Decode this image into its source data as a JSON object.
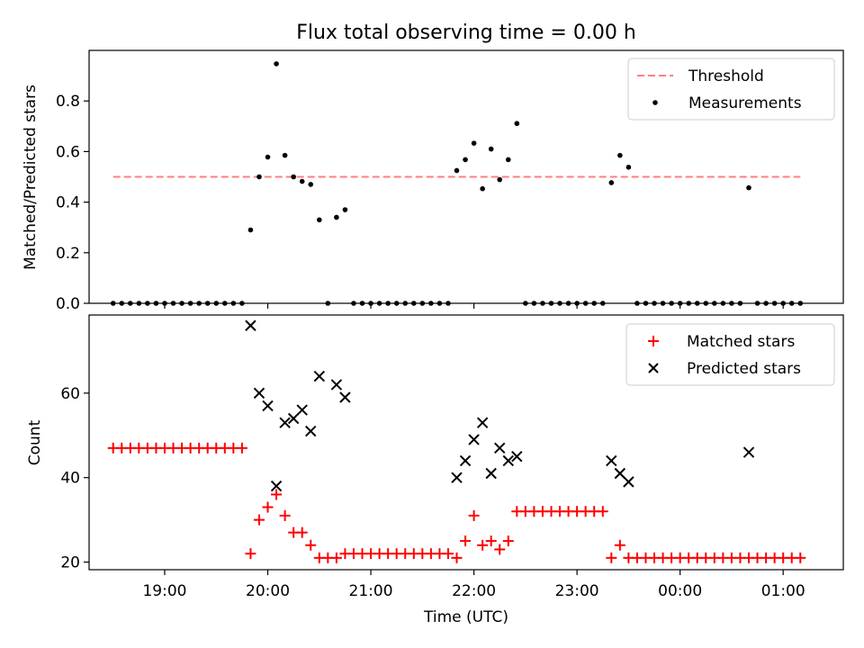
{
  "chart_data": [
    {
      "type": "scatter",
      "title": "Flux total observing time = 0.00 h",
      "ylabel": "Matched/Predicted stars",
      "xlabel": "",
      "ylim": [
        0,
        1.0
      ],
      "yticks": [
        0.0,
        0.2,
        0.4,
        0.6,
        0.8
      ],
      "ytick_labels": [
        "0.0",
        "0.2",
        "0.4",
        "0.6",
        "0.8"
      ],
      "x_is_time": true,
      "xlim": [
        "18:16",
        "25:35"
      ],
      "grid": false,
      "legend_position": "upper right",
      "series": [
        {
          "name": "Threshold",
          "kind": "dashed-line",
          "color": "#ff7f7f",
          "x": [
            "18:30",
            "25:10"
          ],
          "y": [
            0.5,
            0.5
          ]
        },
        {
          "name": "Measurements",
          "kind": "dot",
          "color": "#000000",
          "points": [
            [
              "18:30",
              0
            ],
            [
              "18:35",
              0
            ],
            [
              "18:40",
              0
            ],
            [
              "18:45",
              0
            ],
            [
              "18:50",
              0
            ],
            [
              "18:55",
              0
            ],
            [
              "19:00",
              0
            ],
            [
              "19:05",
              0
            ],
            [
              "19:10",
              0
            ],
            [
              "19:15",
              0
            ],
            [
              "19:20",
              0
            ],
            [
              "19:25",
              0
            ],
            [
              "19:30",
              0
            ],
            [
              "19:35",
              0
            ],
            [
              "19:40",
              0
            ],
            [
              "19:45",
              0
            ],
            [
              "19:50",
              0.29
            ],
            [
              "19:55",
              0.5
            ],
            [
              "20:00",
              0.578
            ],
            [
              "20:05",
              0.947
            ],
            [
              "20:10",
              0.585
            ],
            [
              "20:15",
              0.5
            ],
            [
              "20:20",
              0.482
            ],
            [
              "20:25",
              0.47
            ],
            [
              "20:30",
              0.33
            ],
            [
              "20:35",
              0
            ],
            [
              "20:40",
              0.34
            ],
            [
              "20:45",
              0.37
            ],
            [
              "20:50",
              0
            ],
            [
              "20:55",
              0
            ],
            [
              "21:00",
              0
            ],
            [
              "21:05",
              0
            ],
            [
              "21:10",
              0
            ],
            [
              "21:15",
              0
            ],
            [
              "21:20",
              0
            ],
            [
              "21:25",
              0
            ],
            [
              "21:30",
              0
            ],
            [
              "21:35",
              0
            ],
            [
              "21:40",
              0
            ],
            [
              "21:45",
              0
            ],
            [
              "21:50",
              0.525
            ],
            [
              "21:55",
              0.568
            ],
            [
              "22:00",
              0.633
            ],
            [
              "22:05",
              0.453
            ],
            [
              "22:10",
              0.61
            ],
            [
              "22:15",
              0.489
            ],
            [
              "22:20",
              0.568
            ],
            [
              "22:25",
              0.711
            ],
            [
              "22:30",
              0
            ],
            [
              "22:35",
              0
            ],
            [
              "22:40",
              0
            ],
            [
              "22:45",
              0
            ],
            [
              "22:50",
              0
            ],
            [
              "22:55",
              0
            ],
            [
              "23:00",
              0
            ],
            [
              "23:05",
              0
            ],
            [
              "23:10",
              0
            ],
            [
              "23:15",
              0
            ],
            [
              "23:20",
              0.477
            ],
            [
              "23:25",
              0.585
            ],
            [
              "23:30",
              0.538
            ],
            [
              "23:35",
              0
            ],
            [
              "23:40",
              0
            ],
            [
              "23:45",
              0
            ],
            [
              "23:50",
              0
            ],
            [
              "23:55",
              0
            ],
            [
              "24:00",
              0
            ],
            [
              "24:05",
              0
            ],
            [
              "24:10",
              0
            ],
            [
              "24:15",
              0
            ],
            [
              "24:20",
              0
            ],
            [
              "24:25",
              0
            ],
            [
              "24:30",
              0
            ],
            [
              "24:35",
              0
            ],
            [
              "24:40",
              0.457
            ],
            [
              "24:45",
              0
            ],
            [
              "24:50",
              0
            ],
            [
              "24:55",
              0
            ],
            [
              "25:00",
              0
            ],
            [
              "25:05",
              0
            ],
            [
              "25:10",
              0
            ]
          ]
        }
      ]
    },
    {
      "type": "scatter",
      "title": "",
      "ylabel": "Count",
      "xlabel": "Time (UTC)",
      "ylim": [
        18.2,
        78.5
      ],
      "yticks": [
        20,
        40,
        60
      ],
      "ytick_labels": [
        "20",
        "40",
        "60"
      ],
      "x_is_time": true,
      "xlim": [
        "18:16",
        "25:35"
      ],
      "xticks": [
        "19:00",
        "20:00",
        "21:00",
        "22:00",
        "23:00",
        "24:00",
        "25:00"
      ],
      "xtick_labels": [
        "19:00",
        "20:00",
        "21:00",
        "22:00",
        "23:00",
        "00:00",
        "01:00"
      ],
      "grid": false,
      "legend_position": "upper right",
      "series": [
        {
          "name": "Matched stars",
          "kind": "plus",
          "color": "#ff0000",
          "points": [
            [
              "18:30",
              47
            ],
            [
              "18:35",
              47
            ],
            [
              "18:40",
              47
            ],
            [
              "18:45",
              47
            ],
            [
              "18:50",
              47
            ],
            [
              "18:55",
              47
            ],
            [
              "19:00",
              47
            ],
            [
              "19:05",
              47
            ],
            [
              "19:10",
              47
            ],
            [
              "19:15",
              47
            ],
            [
              "19:20",
              47
            ],
            [
              "19:25",
              47
            ],
            [
              "19:30",
              47
            ],
            [
              "19:35",
              47
            ],
            [
              "19:40",
              47
            ],
            [
              "19:45",
              47
            ],
            [
              "19:50",
              22
            ],
            [
              "19:55",
              30
            ],
            [
              "20:00",
              33
            ],
            [
              "20:05",
              36
            ],
            [
              "20:10",
              31
            ],
            [
              "20:15",
              27
            ],
            [
              "20:20",
              27
            ],
            [
              "20:25",
              24
            ],
            [
              "20:30",
              21
            ],
            [
              "20:35",
              21
            ],
            [
              "20:40",
              21
            ],
            [
              "20:45",
              22
            ],
            [
              "20:50",
              22
            ],
            [
              "20:55",
              22
            ],
            [
              "21:00",
              22
            ],
            [
              "21:05",
              22
            ],
            [
              "21:10",
              22
            ],
            [
              "21:15",
              22
            ],
            [
              "21:20",
              22
            ],
            [
              "21:25",
              22
            ],
            [
              "21:30",
              22
            ],
            [
              "21:35",
              22
            ],
            [
              "21:40",
              22
            ],
            [
              "21:45",
              22
            ],
            [
              "21:50",
              21
            ],
            [
              "21:55",
              25
            ],
            [
              "22:00",
              31
            ],
            [
              "22:05",
              24
            ],
            [
              "22:10",
              25
            ],
            [
              "22:15",
              23
            ],
            [
              "22:20",
              25
            ],
            [
              "22:25",
              32
            ],
            [
              "22:30",
              32
            ],
            [
              "22:35",
              32
            ],
            [
              "22:40",
              32
            ],
            [
              "22:45",
              32
            ],
            [
              "22:50",
              32
            ],
            [
              "22:55",
              32
            ],
            [
              "23:00",
              32
            ],
            [
              "23:05",
              32
            ],
            [
              "23:10",
              32
            ],
            [
              "23:15",
              32
            ],
            [
              "23:20",
              21
            ],
            [
              "23:25",
              24
            ],
            [
              "23:30",
              21
            ],
            [
              "23:35",
              21
            ],
            [
              "23:40",
              21
            ],
            [
              "23:45",
              21
            ],
            [
              "23:50",
              21
            ],
            [
              "23:55",
              21
            ],
            [
              "24:00",
              21
            ],
            [
              "24:05",
              21
            ],
            [
              "24:10",
              21
            ],
            [
              "24:15",
              21
            ],
            [
              "24:20",
              21
            ],
            [
              "24:25",
              21
            ],
            [
              "24:30",
              21
            ],
            [
              "24:35",
              21
            ],
            [
              "24:40",
              21
            ],
            [
              "24:45",
              21
            ],
            [
              "24:50",
              21
            ],
            [
              "24:55",
              21
            ],
            [
              "25:00",
              21
            ],
            [
              "25:05",
              21
            ],
            [
              "25:10",
              21
            ]
          ]
        },
        {
          "name": "Predicted stars",
          "kind": "cross",
          "color": "#000000",
          "points": [
            [
              "19:50",
              76
            ],
            [
              "19:55",
              60
            ],
            [
              "20:00",
              57
            ],
            [
              "20:05",
              38
            ],
            [
              "20:10",
              53
            ],
            [
              "20:15",
              54
            ],
            [
              "20:20",
              56
            ],
            [
              "20:25",
              51
            ],
            [
              "20:30",
              64
            ],
            [
              "20:40",
              62
            ],
            [
              "20:45",
              59
            ],
            [
              "21:50",
              40
            ],
            [
              "21:55",
              44
            ],
            [
              "22:00",
              49
            ],
            [
              "22:05",
              53
            ],
            [
              "22:10",
              41
            ],
            [
              "22:15",
              47
            ],
            [
              "22:20",
              44
            ],
            [
              "22:25",
              45
            ],
            [
              "23:20",
              44
            ],
            [
              "23:25",
              41
            ],
            [
              "23:30",
              39
            ],
            [
              "24:40",
              46
            ]
          ]
        }
      ]
    }
  ]
}
